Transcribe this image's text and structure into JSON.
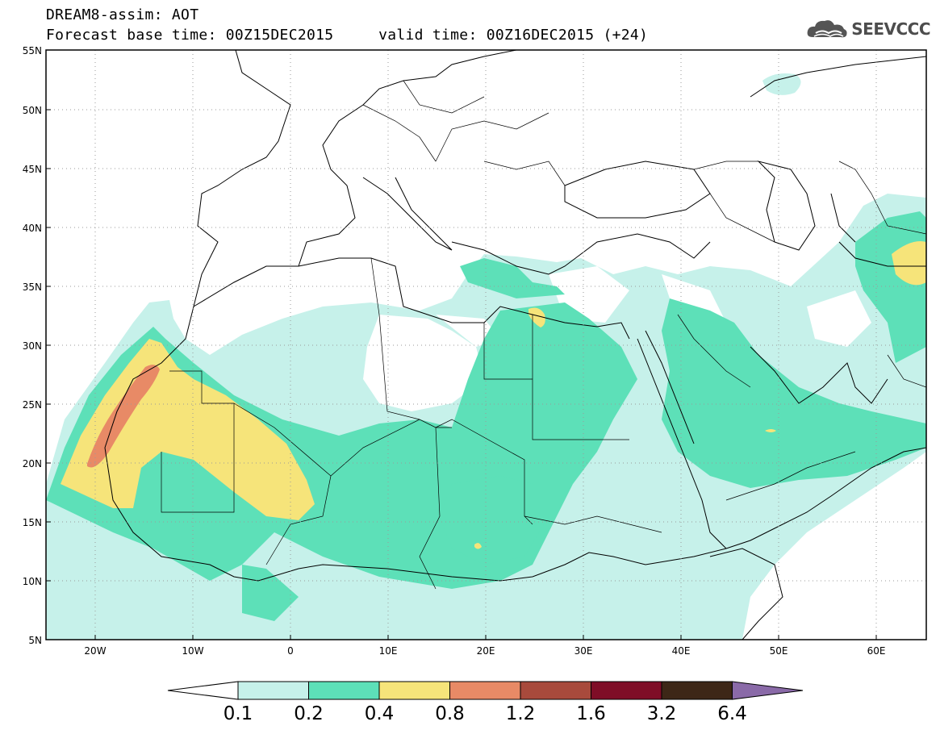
{
  "header": {
    "title": "DREAM8-assim: AOT",
    "subtitle_base": "Forecast base time: 00Z15DEC2015",
    "subtitle_valid": "valid time: 00Z16DEC2015 (+24)",
    "logo_text": "SEEVCCC",
    "logo_icon": "cloud-icon"
  },
  "map": {
    "lon_range": [
      -25,
      65
    ],
    "lat_range": [
      5,
      55
    ],
    "lat_ticks": [
      "55N",
      "50N",
      "45N",
      "40N",
      "35N",
      "30N",
      "25N",
      "20N",
      "15N",
      "10N",
      "5N"
    ],
    "lon_ticks": [
      "20W",
      "10W",
      "0",
      "10E",
      "20E",
      "30E",
      "40E",
      "50E",
      "60E"
    ],
    "grid": "dotted"
  },
  "colorbar": {
    "labels": [
      "0.1",
      "0.2",
      "0.4",
      "0.8",
      "1.2",
      "1.6",
      "3.2",
      "6.4"
    ],
    "colors": [
      "#ffffff",
      "#c6f1ea",
      "#5de0b8",
      "#f6e47a",
      "#e88a66",
      "#a84a3c",
      "#7f0d27",
      "#3d2717",
      "#8a6aa8"
    ]
  }
}
